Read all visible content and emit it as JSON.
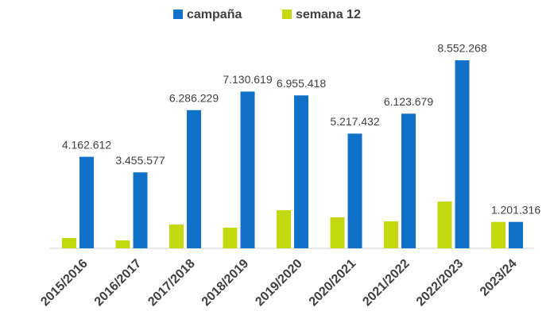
{
  "chart_data": {
    "type": "bar",
    "categories": [
      "2015/2016",
      "2016/2017",
      "2017/2018",
      "2018/2019",
      "2019/2020",
      "2020/2021",
      "2021/2022",
      "2022/2023",
      "2023/24"
    ],
    "series": [
      {
        "name": "campaña",
        "color": "#1170c7",
        "values": [
          4162612,
          3455577,
          6286229,
          7130619,
          6955418,
          5217432,
          6123679,
          8552268,
          1201316
        ],
        "value_labels": [
          "4.162.612",
          "3.455.577",
          "6.286.229",
          "7.130.619",
          "6.955.418",
          "5.217.432",
          "6.123.679",
          "8.552.268",
          "1.201.316"
        ]
      },
      {
        "name": "semana 12",
        "color": "#c4d80f",
        "values": [
          470000,
          360000,
          1080000,
          940000,
          1730000,
          1410000,
          1230000,
          2130000,
          1201316
        ]
      }
    ],
    "legend": "top"
  }
}
